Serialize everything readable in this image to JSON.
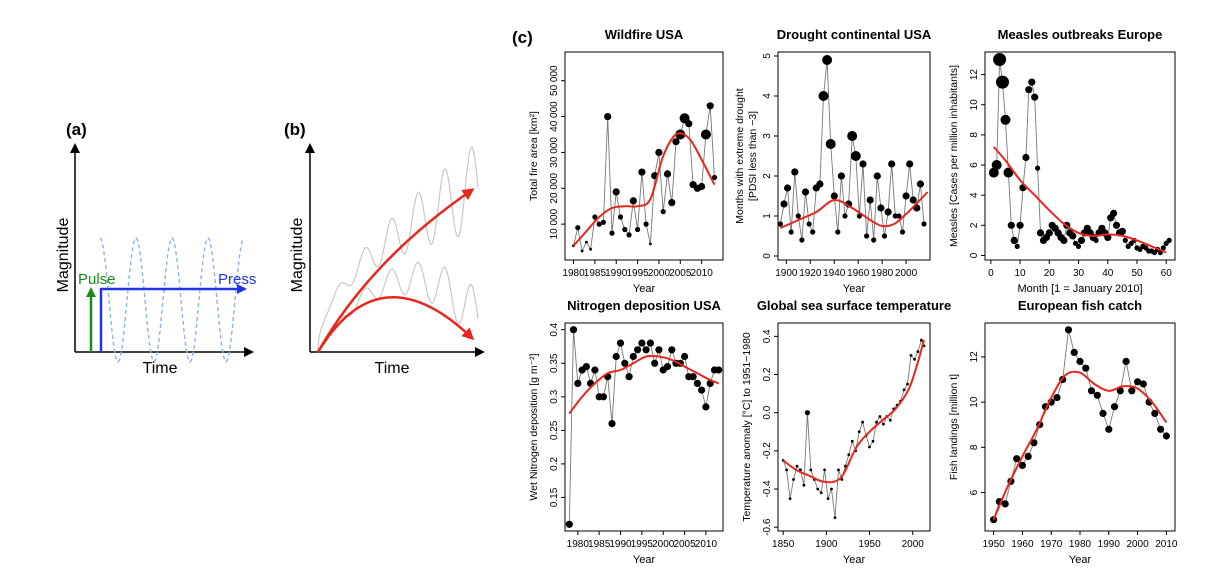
{
  "panels": {
    "a": {
      "label": "(a)",
      "ylabel": "Magnitude",
      "xlabel": "Time",
      "pulse_label": "Pulse",
      "press_label": "Press",
      "colors": {
        "pulse": "#1a8a1a",
        "press": "#2233ee",
        "oscillation": "#8ab4e8"
      }
    },
    "b": {
      "label": "(b)",
      "ylabel": "Magnitude",
      "xlabel": "Time",
      "colors": {
        "trend": "#e8261c",
        "oscillation": "#c8c8c8"
      }
    },
    "c": {
      "label": "(c)"
    }
  },
  "chart_data": [
    {
      "type": "line",
      "title": "Wildfire USA",
      "xlabel": "Year",
      "ylabel": "Total fire area [km²]",
      "xlim": [
        1978,
        2015
      ],
      "ylim": [
        0,
        58000
      ],
      "xticks": [
        1980,
        1985,
        1990,
        1995,
        2000,
        2005,
        2010
      ],
      "yticks": [
        10000,
        20000,
        30000,
        40000,
        50000
      ],
      "ytick_labels": [
        "10 000",
        "20 000",
        "30 000",
        "40 000",
        "50 000"
      ],
      "series": [
        {
          "x": [
            1980,
            1981,
            1982,
            1983,
            1984,
            1985,
            1986,
            1987,
            1988,
            1989,
            1990,
            1991,
            1992,
            1993,
            1994,
            1995,
            1996,
            1997,
            1998,
            1999,
            2000,
            2001,
            2002,
            2003,
            2004,
            2005,
            2006,
            2007,
            2008,
            2009,
            2010,
            2011,
            2012,
            2013
          ],
          "y": [
            4000,
            9000,
            2500,
            5000,
            3000,
            12000,
            10000,
            10500,
            40000,
            7500,
            19000,
            12000,
            8500,
            7000,
            16500,
            8500,
            24500,
            10000,
            4500,
            23500,
            30000,
            13500,
            24000,
            16000,
            33000,
            35000,
            39500,
            38000,
            21000,
            20000,
            20500,
            35000,
            43000,
            23000
          ],
          "marker_size": [
            1,
            2,
            1,
            1,
            1,
            2,
            2,
            2,
            3,
            2,
            3,
            2,
            2,
            2,
            3,
            2,
            3,
            2,
            1,
            3,
            3,
            2,
            3,
            3,
            3,
            4,
            4,
            3,
            3,
            3,
            3,
            4,
            3,
            2
          ]
        },
        {
          "name": "",
          "smooth": true,
          "x": [
            1980,
            1983,
            1986,
            1989,
            1992,
            1995,
            1998,
            2001,
            2004,
            2007,
            2010,
            2013
          ],
          "y": [
            4000,
            8000,
            12000,
            14500,
            15000,
            15000,
            17000,
            29000,
            35000,
            34000,
            28000,
            21000
          ]
        }
      ]
    },
    {
      "type": "line",
      "title": "Drought continental USA",
      "xlabel": "Year",
      "ylabel": "Months with extreme drought\n[PDSI less than −3]",
      "xlim": [
        1893,
        2020
      ],
      "ylim": [
        -0.1,
        5.1
      ],
      "xticks": [
        1900,
        1920,
        1940,
        1960,
        1980,
        2000
      ],
      "yticks": [
        0,
        1,
        2,
        3,
        4,
        5
      ],
      "series": [
        {
          "x": [
            1895,
            1898,
            1901,
            1904,
            1907,
            1910,
            1913,
            1916,
            1919,
            1922,
            1925,
            1928,
            1931,
            1934,
            1937,
            1940,
            1943,
            1946,
            1949,
            1952,
            1955,
            1958,
            1961,
            1964,
            1967,
            1970,
            1973,
            1976,
            1979,
            1982,
            1985,
            1988,
            1991,
            1994,
            1997,
            2000,
            2003,
            2006,
            2009,
            2012,
            2015
          ],
          "y": [
            0.8,
            1.3,
            1.7,
            0.6,
            2.1,
            1.0,
            0.4,
            1.6,
            0.8,
            0.6,
            1.7,
            1.8,
            4.0,
            4.9,
            2.8,
            1.5,
            0.6,
            2.0,
            1.0,
            1.3,
            3.0,
            2.5,
            1.0,
            2.3,
            0.5,
            1.4,
            0.4,
            2.0,
            1.2,
            0.5,
            1.1,
            2.3,
            1.0,
            1.0,
            0.6,
            1.5,
            2.3,
            1.4,
            1.2,
            1.8,
            0.8
          ],
          "marker_size": [
            2,
            3,
            3,
            2,
            3,
            2,
            2,
            3,
            2,
            2,
            3,
            3,
            4,
            4,
            4,
            3,
            2,
            3,
            2,
            3,
            4,
            4,
            2,
            3,
            2,
            3,
            2,
            3,
            3,
            2,
            3,
            3,
            2,
            2,
            2,
            3,
            3,
            3,
            3,
            3,
            2
          ]
        },
        {
          "name": "",
          "smooth": true,
          "x": [
            1895,
            1910,
            1925,
            1940,
            1955,
            1970,
            1980,
            1990,
            2000,
            2010,
            2018
          ],
          "y": [
            0.7,
            0.9,
            1.1,
            1.4,
            1.2,
            0.9,
            0.75,
            0.8,
            1.05,
            1.35,
            1.6
          ]
        }
      ]
    },
    {
      "type": "line",
      "title": "Measles outbreaks Europe",
      "xlabel": "Month [1 = January 2010]",
      "ylabel": "Measles [Cases per million inhabitants]",
      "xlim": [
        -2,
        63
      ],
      "ylim": [
        -0.3,
        13.5
      ],
      "xticks": [
        0,
        10,
        20,
        30,
        40,
        50,
        60
      ],
      "yticks": [
        0,
        2,
        4,
        6,
        8,
        10,
        12
      ],
      "series": [
        {
          "x": [
            1,
            2,
            3,
            4,
            5,
            6,
            7,
            8,
            9,
            10,
            11,
            12,
            13,
            14,
            15,
            16,
            17,
            18,
            19,
            20,
            21,
            22,
            23,
            24,
            25,
            26,
            27,
            28,
            29,
            30,
            31,
            32,
            33,
            34,
            35,
            36,
            37,
            38,
            39,
            40,
            41,
            42,
            43,
            44,
            45,
            46,
            47,
            48,
            49,
            50,
            51,
            52,
            53,
            54,
            55,
            56,
            57,
            58,
            59,
            60,
            61
          ],
          "y": [
            5.5,
            6.0,
            13.0,
            11.5,
            9.0,
            5.5,
            2.0,
            1.0,
            0.6,
            2.0,
            4.5,
            6.5,
            11.0,
            11.5,
            10.5,
            5.8,
            1.5,
            1.0,
            1.2,
            1.5,
            2.0,
            1.8,
            1.5,
            1.2,
            1.0,
            2.0,
            1.5,
            1.3,
            0.8,
            0.6,
            1.0,
            1.5,
            1.8,
            1.5,
            1.2,
            1.0,
            1.5,
            1.8,
            1.5,
            1.2,
            2.5,
            2.8,
            2.0,
            1.5,
            1.6,
            1.0,
            0.6,
            0.8,
            1.0,
            0.5,
            0.4,
            0.6,
            0.5,
            0.3,
            0.3,
            0.2,
            0.4,
            0.2,
            0.5,
            0.8,
            1.0
          ],
          "marker_size": [
            4,
            4,
            5,
            5,
            4,
            4,
            3,
            3,
            2,
            3,
            3,
            3,
            3,
            3,
            3,
            2,
            3,
            3,
            3,
            3,
            3,
            3,
            3,
            3,
            3,
            3,
            3,
            3,
            2,
            2,
            3,
            3,
            3,
            3,
            3,
            2,
            3,
            3,
            3,
            3,
            3,
            3,
            3,
            3,
            3,
            2,
            2,
            2,
            2,
            2,
            2,
            2,
            2,
            2,
            2,
            2,
            2,
            2,
            2,
            2,
            2
          ]
        },
        {
          "name": "",
          "smooth": true,
          "x": [
            1,
            5,
            10,
            15,
            20,
            25,
            30,
            35,
            40,
            45,
            50,
            55,
            60
          ],
          "y": [
            7.2,
            6.3,
            5.0,
            4.0,
            3.0,
            2.1,
            1.5,
            1.3,
            1.4,
            1.3,
            1.0,
            0.6,
            0.2
          ]
        }
      ]
    },
    {
      "type": "line",
      "title": "Nitrogen deposition USA",
      "xlabel": "Year",
      "ylabel": "Wet Nitrogen deposition [g m⁻²]",
      "xlim": [
        1977,
        2014
      ],
      "ylim": [
        0.1,
        0.41
      ],
      "xticks": [
        1980,
        1985,
        1990,
        1995,
        2000,
        2005,
        2010
      ],
      "yticks": [
        0.15,
        0.2,
        0.25,
        0.3,
        0.35,
        0.4
      ],
      "series": [
        {
          "x": [
            1978,
            1979,
            1980,
            1981,
            1982,
            1983,
            1984,
            1985,
            1986,
            1987,
            1988,
            1989,
            1990,
            1991,
            1992,
            1993,
            1994,
            1995,
            1996,
            1997,
            1998,
            1999,
            2000,
            2001,
            2002,
            2003,
            2004,
            2005,
            2006,
            2007,
            2008,
            2009,
            2010,
            2011,
            2012,
            2013
          ],
          "y": [
            0.11,
            0.4,
            0.32,
            0.34,
            0.345,
            0.32,
            0.34,
            0.3,
            0.3,
            0.33,
            0.26,
            0.36,
            0.38,
            0.35,
            0.33,
            0.36,
            0.37,
            0.38,
            0.37,
            0.38,
            0.35,
            0.37,
            0.34,
            0.345,
            0.37,
            0.35,
            0.35,
            0.36,
            0.33,
            0.33,
            0.32,
            0.31,
            0.285,
            0.32,
            0.34,
            0.34
          ]
        },
        {
          "name": "",
          "smooth": true,
          "x": [
            1978,
            1981,
            1984,
            1987,
            1990,
            1993,
            1996,
            1999,
            2002,
            2005,
            2008,
            2011,
            2013
          ],
          "y": [
            0.275,
            0.3,
            0.32,
            0.335,
            0.34,
            0.35,
            0.36,
            0.36,
            0.355,
            0.345,
            0.335,
            0.325,
            0.32
          ]
        }
      ]
    },
    {
      "type": "line",
      "title": "Global sea surface temperature",
      "xlabel": "Year",
      "ylabel": "Temperature anomaly [°C] to 1951−1980",
      "xlim": [
        1844,
        2020
      ],
      "ylim": [
        -0.62,
        0.47
      ],
      "xticks": [
        1850,
        1900,
        1950,
        2000
      ],
      "yticks": [
        -0.6,
        -0.4,
        -0.2,
        0.0,
        0.2,
        0.4
      ],
      "yticks_format": "decimal",
      "series": [
        {
          "x": [
            1850,
            1854,
            1858,
            1862,
            1866,
            1870,
            1874,
            1878,
            1882,
            1886,
            1890,
            1894,
            1898,
            1902,
            1906,
            1910,
            1914,
            1918,
            1922,
            1926,
            1930,
            1934,
            1938,
            1942,
            1946,
            1950,
            1954,
            1958,
            1962,
            1966,
            1970,
            1974,
            1978,
            1982,
            1986,
            1990,
            1994,
            1998,
            2002,
            2006,
            2010,
            2013
          ],
          "y": [
            -0.25,
            -0.3,
            -0.45,
            -0.35,
            -0.28,
            -0.3,
            -0.38,
            0.0,
            -0.3,
            -0.35,
            -0.4,
            -0.42,
            -0.3,
            -0.45,
            -0.4,
            -0.55,
            -0.3,
            -0.35,
            -0.28,
            -0.22,
            -0.15,
            -0.2,
            -0.1,
            -0.05,
            -0.12,
            -0.18,
            -0.15,
            -0.05,
            -0.02,
            -0.06,
            -0.02,
            -0.04,
            0.02,
            0.04,
            0.06,
            0.12,
            0.15,
            0.3,
            0.28,
            0.32,
            0.38,
            0.35
          ],
          "marker_size": [
            1,
            1,
            1,
            1,
            1,
            1,
            1,
            2,
            1,
            1,
            1,
            1,
            1,
            1,
            1,
            1,
            1,
            1,
            1,
            1,
            1,
            1,
            1,
            1,
            1,
            1,
            1,
            1,
            1,
            1,
            1,
            1,
            1,
            1,
            1,
            1,
            1,
            1,
            1,
            1,
            1,
            1
          ]
        },
        {
          "name": "",
          "smooth": true,
          "x": [
            1850,
            1865,
            1880,
            1895,
            1910,
            1920,
            1935,
            1950,
            1965,
            1980,
            1995,
            2005,
            2013
          ],
          "y": [
            -0.25,
            -0.3,
            -0.33,
            -0.36,
            -0.36,
            -0.32,
            -0.18,
            -0.1,
            -0.04,
            0.02,
            0.12,
            0.25,
            0.38
          ]
        }
      ]
    },
    {
      "type": "line",
      "title": "European fish catch",
      "xlabel": "Year",
      "ylabel": "Fish landings [million t]",
      "xlim": [
        1947,
        2013
      ],
      "ylim": [
        4.3,
        13.5
      ],
      "xticks": [
        1950,
        1960,
        1970,
        1980,
        1990,
        2000,
        2010
      ],
      "yticks": [
        6,
        8,
        10,
        12
      ],
      "series": [
        {
          "x": [
            1950,
            1952,
            1954,
            1956,
            1958,
            1960,
            1962,
            1964,
            1966,
            1968,
            1970,
            1972,
            1974,
            1976,
            1978,
            1980,
            1982,
            1984,
            1986,
            1988,
            1990,
            1992,
            1994,
            1996,
            1998,
            2000,
            2002,
            2004,
            2006,
            2008,
            2010
          ],
          "y": [
            4.8,
            5.6,
            5.5,
            6.5,
            7.5,
            7.2,
            7.6,
            8.2,
            9.0,
            9.8,
            10.0,
            10.2,
            11.0,
            13.2,
            12.2,
            11.8,
            11.5,
            10.5,
            10.3,
            9.5,
            8.8,
            9.8,
            10.5,
            11.8,
            10.5,
            10.9,
            10.8,
            10.0,
            9.5,
            8.8,
            8.5
          ]
        },
        {
          "name": "",
          "smooth": true,
          "x": [
            1950,
            1955,
            1960,
            1965,
            1970,
            1975,
            1980,
            1985,
            1990,
            1995,
            2000,
            2005,
            2010
          ],
          "y": [
            4.8,
            6.3,
            7.6,
            8.8,
            10.2,
            11.2,
            11.3,
            10.8,
            10.5,
            10.7,
            10.6,
            10.0,
            9.1
          ]
        }
      ]
    }
  ]
}
